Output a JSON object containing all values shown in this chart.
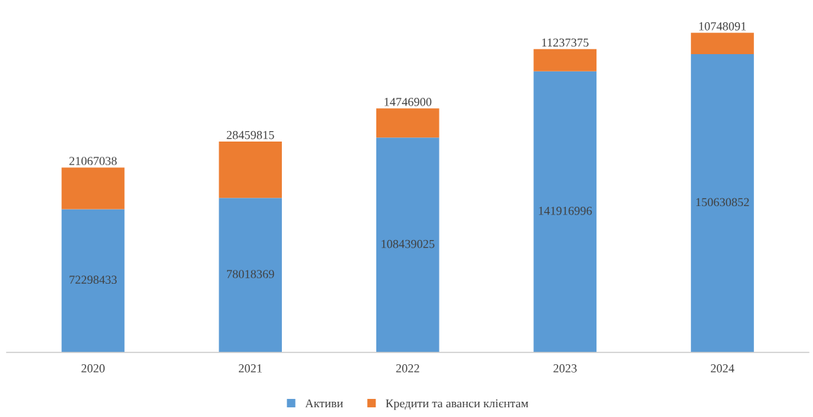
{
  "chart_data": {
    "type": "bar",
    "stacked": true,
    "categories": [
      "2020",
      "2021",
      "2022",
      "2023",
      "2024"
    ],
    "series": [
      {
        "name": "Активи",
        "color": "#5b9bd5",
        "values": [
          72298433,
          78018369,
          108439025,
          141916996,
          150630852
        ]
      },
      {
        "name": "Кредити та аванси клієнтам",
        "color": "#ed7d31",
        "values": [
          21067038,
          28459815,
          14746900,
          11237375,
          10748091
        ]
      }
    ],
    "data_labels": true,
    "grid": false,
    "legend": "bottom"
  }
}
